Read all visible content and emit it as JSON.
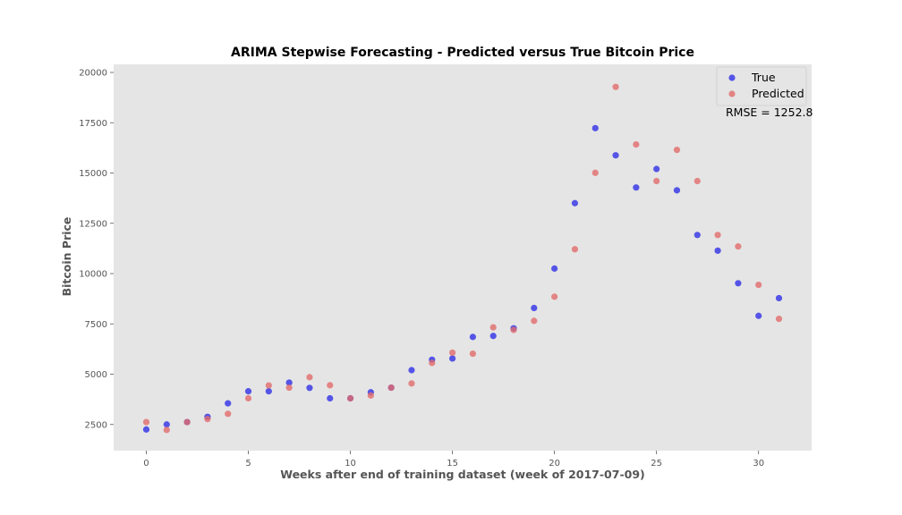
{
  "chart_data": {
    "type": "scatter",
    "title": "ARIMA Stepwise Forecasting - Predicted versus True Bitcoin Price",
    "xlabel": "Weeks after end of training dataset (week of 2017-07-09)",
    "ylabel": "Bitcoin Price",
    "xlim": [
      -1.6,
      32.6
    ],
    "ylim": [
      1200,
      20400
    ],
    "xticks": [
      0,
      5,
      10,
      15,
      20,
      25,
      30
    ],
    "yticks": [
      2500,
      5000,
      7500,
      10000,
      12500,
      15000,
      17500,
      20000
    ],
    "grid": false,
    "background": "#e5e5e5",
    "legend_position": "upper-right",
    "annotation": "RMSE = 1252.8",
    "series": [
      {
        "name": "True",
        "color": "#2f2fe6",
        "x": [
          0,
          1,
          2,
          3,
          4,
          5,
          6,
          7,
          8,
          9,
          10,
          11,
          12,
          13,
          14,
          15,
          16,
          17,
          18,
          19,
          20,
          21,
          22,
          23,
          24,
          25,
          26,
          27,
          28,
          29,
          30,
          31
        ],
        "y": [
          2250,
          2500,
          2620,
          2880,
          3550,
          4150,
          4150,
          4580,
          4320,
          3800,
          3800,
          4100,
          4330,
          5200,
          5720,
          5780,
          6850,
          6900,
          7280,
          8290,
          10250,
          13500,
          17230,
          15880,
          14280,
          15200,
          14140,
          11920,
          11140,
          9520,
          7900,
          8780
        ]
      },
      {
        "name": "Predicted",
        "color": "#e26b6b",
        "x": [
          0,
          1,
          2,
          3,
          4,
          5,
          6,
          7,
          8,
          9,
          10,
          11,
          12,
          13,
          14,
          15,
          16,
          17,
          18,
          19,
          20,
          21,
          22,
          23,
          24,
          25,
          26,
          27,
          28,
          29,
          30,
          31
        ],
        "y": [
          2620,
          2230,
          2620,
          2770,
          3030,
          3800,
          4440,
          4330,
          4850,
          4450,
          3800,
          3940,
          4330,
          4540,
          5560,
          6070,
          6020,
          7330,
          7200,
          7650,
          8850,
          11210,
          15010,
          19280,
          16420,
          14600,
          16150,
          14600,
          11920,
          11350,
          9440,
          7750
        ]
      }
    ]
  }
}
